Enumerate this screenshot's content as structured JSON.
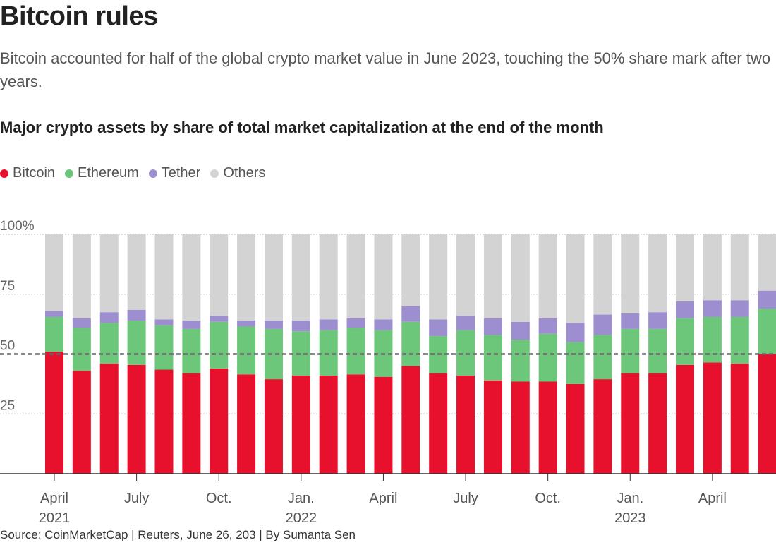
{
  "header": {
    "title": "Bitcoin rules",
    "subtitle": "Bitcoin accounted for half of the global crypto market value in June 2023, touching the 50% share mark after two years."
  },
  "footer": {
    "source": "Source: CoinMarketCap | Reuters, June 26, 203 | By Sumanta Sen"
  },
  "colors": {
    "bitcoin": "#e8112d",
    "ethereum": "#6cc77a",
    "tether": "#9d8fcf",
    "others": "#d3d3d3",
    "grid": "#bbbbbb",
    "axis": "#333333",
    "reference": "#666666"
  },
  "chart_data": {
    "type": "bar",
    "stacked": true,
    "title": "Major crypto assets by share of total market capitalization at the end of the month",
    "legend": [
      "Bitcoin",
      "Ethereum",
      "Tether",
      "Others"
    ],
    "legend_position": "top-left",
    "ylim": [
      0,
      100
    ],
    "yticks": [
      {
        "value": 100,
        "label": "100%"
      },
      {
        "value": 75,
        "label": "75"
      },
      {
        "value": 50,
        "label": "50"
      },
      {
        "value": 25,
        "label": "25"
      }
    ],
    "reference_line": 50,
    "categories": [
      "Apr 2021",
      "May 2021",
      "Jun 2021",
      "Jul 2021",
      "Aug 2021",
      "Sep 2021",
      "Oct 2021",
      "Nov 2021",
      "Dec 2021",
      "Jan 2022",
      "Feb 2022",
      "Mar 2022",
      "Apr 2022",
      "May 2022",
      "Jun 2022",
      "Jul 2022",
      "Aug 2022",
      "Sep 2022",
      "Oct 2022",
      "Nov 2022",
      "Dec 2022",
      "Jan 2023",
      "Feb 2023",
      "Mar 2023",
      "Apr 2023",
      "May 2023",
      "Jun 2023"
    ],
    "x_tick_labels": [
      {
        "index": 0,
        "line1": "April",
        "line2": "2021"
      },
      {
        "index": 3,
        "line1": "July",
        "line2": ""
      },
      {
        "index": 6,
        "line1": "Oct.",
        "line2": ""
      },
      {
        "index": 9,
        "line1": "Jan.",
        "line2": "2022"
      },
      {
        "index": 12,
        "line1": "April",
        "line2": ""
      },
      {
        "index": 15,
        "line1": "July",
        "line2": ""
      },
      {
        "index": 18,
        "line1": "Oct.",
        "line2": ""
      },
      {
        "index": 21,
        "line1": "Jan.",
        "line2": "2023"
      },
      {
        "index": 24,
        "line1": "April",
        "line2": ""
      }
    ],
    "series": [
      {
        "name": "Bitcoin",
        "values": [
          51,
          43,
          46,
          45.5,
          43.5,
          42,
          44,
          41.5,
          39.5,
          41,
          41,
          41.5,
          40.5,
          45,
          42,
          41,
          39,
          38.5,
          38.5,
          37.5,
          39.5,
          42,
          42,
          45.5,
          46.5,
          46,
          50
        ]
      },
      {
        "name": "Ethereum",
        "values": [
          14.5,
          18,
          17,
          18.5,
          18.5,
          18.5,
          19.5,
          20,
          21,
          18.5,
          19,
          19.5,
          19.5,
          18.5,
          15.5,
          19,
          19,
          17.5,
          20,
          17.5,
          18.5,
          18.5,
          18.5,
          19.5,
          19,
          19.5,
          19
        ]
      },
      {
        "name": "Tether",
        "values": [
          2.5,
          4,
          4.5,
          4.5,
          2.5,
          3.5,
          2.5,
          2.5,
          3.5,
          4.5,
          4.5,
          4,
          4.5,
          6.5,
          7,
          6,
          7,
          7.5,
          6.5,
          8,
          8.5,
          6.5,
          7,
          7,
          7,
          7,
          7.5
        ]
      },
      {
        "name": "Others",
        "values": [
          32,
          35,
          32.5,
          31.5,
          35.5,
          36,
          34,
          36,
          36,
          36,
          35.5,
          35,
          35.5,
          30,
          35.5,
          34,
          35,
          36.5,
          35,
          37,
          33.5,
          33,
          32.5,
          28,
          27.5,
          27.5,
          23.5
        ]
      }
    ]
  }
}
